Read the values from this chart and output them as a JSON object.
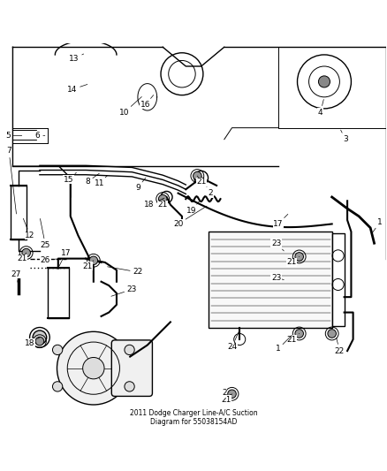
{
  "title": "2011 Dodge Charger Line-A/C Suction\nDiagram for 55038154AD",
  "bg_color": "#ffffff",
  "line_color": "#000000",
  "fig_width": 4.38,
  "fig_height": 5.33,
  "dpi": 100
}
